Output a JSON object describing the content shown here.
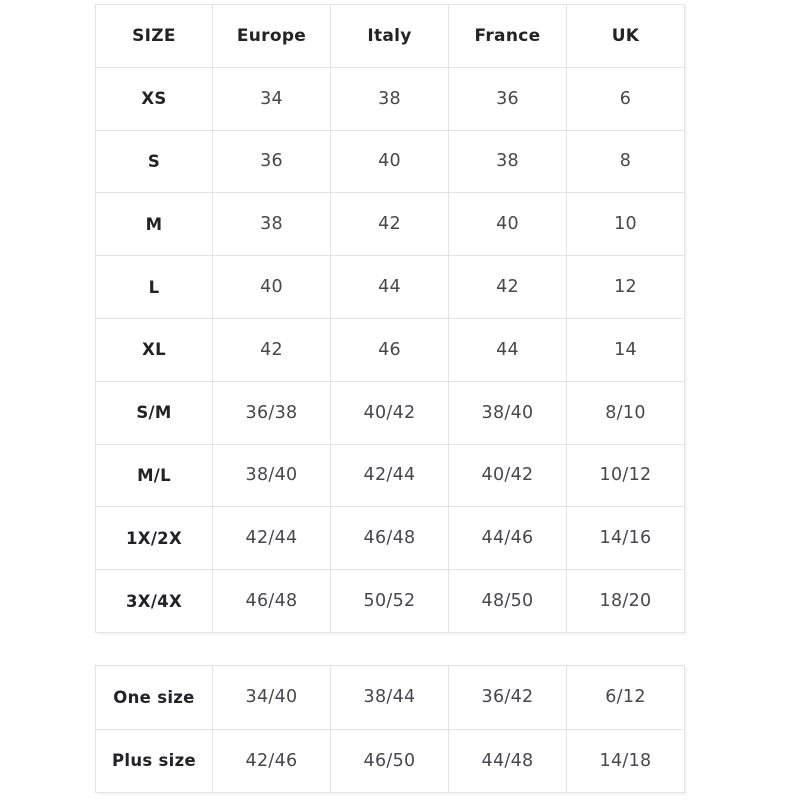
{
  "colors": {
    "background": "#ffffff",
    "grid_border": "#e3e3e3",
    "header_text": "#222227",
    "value_text": "#47474f"
  },
  "chart_data": [
    {
      "type": "table",
      "columns": [
        "SIZE",
        "Europe",
        "Italy",
        "France",
        "UK"
      ],
      "rows": [
        [
          "XS",
          "34",
          "38",
          "36",
          "6"
        ],
        [
          "S",
          "36",
          "40",
          "38",
          "8"
        ],
        [
          "M",
          "38",
          "42",
          "40",
          "10"
        ],
        [
          "L",
          "40",
          "44",
          "42",
          "12"
        ],
        [
          "XL",
          "42",
          "46",
          "44",
          "14"
        ],
        [
          "S/M",
          "36/38",
          "40/42",
          "38/40",
          "8/10"
        ],
        [
          "M/L",
          "38/40",
          "42/44",
          "40/42",
          "10/12"
        ],
        [
          "1X/2X",
          "42/44",
          "46/48",
          "44/46",
          "14/16"
        ],
        [
          "3X/4X",
          "46/48",
          "50/52",
          "48/50",
          "18/20"
        ]
      ]
    },
    {
      "type": "table",
      "rows": [
        [
          "One size",
          "34/40",
          "38/44",
          "36/42",
          "6/12"
        ],
        [
          "Plus size",
          "42/46",
          "46/50",
          "44/48",
          "14/18"
        ]
      ]
    }
  ]
}
